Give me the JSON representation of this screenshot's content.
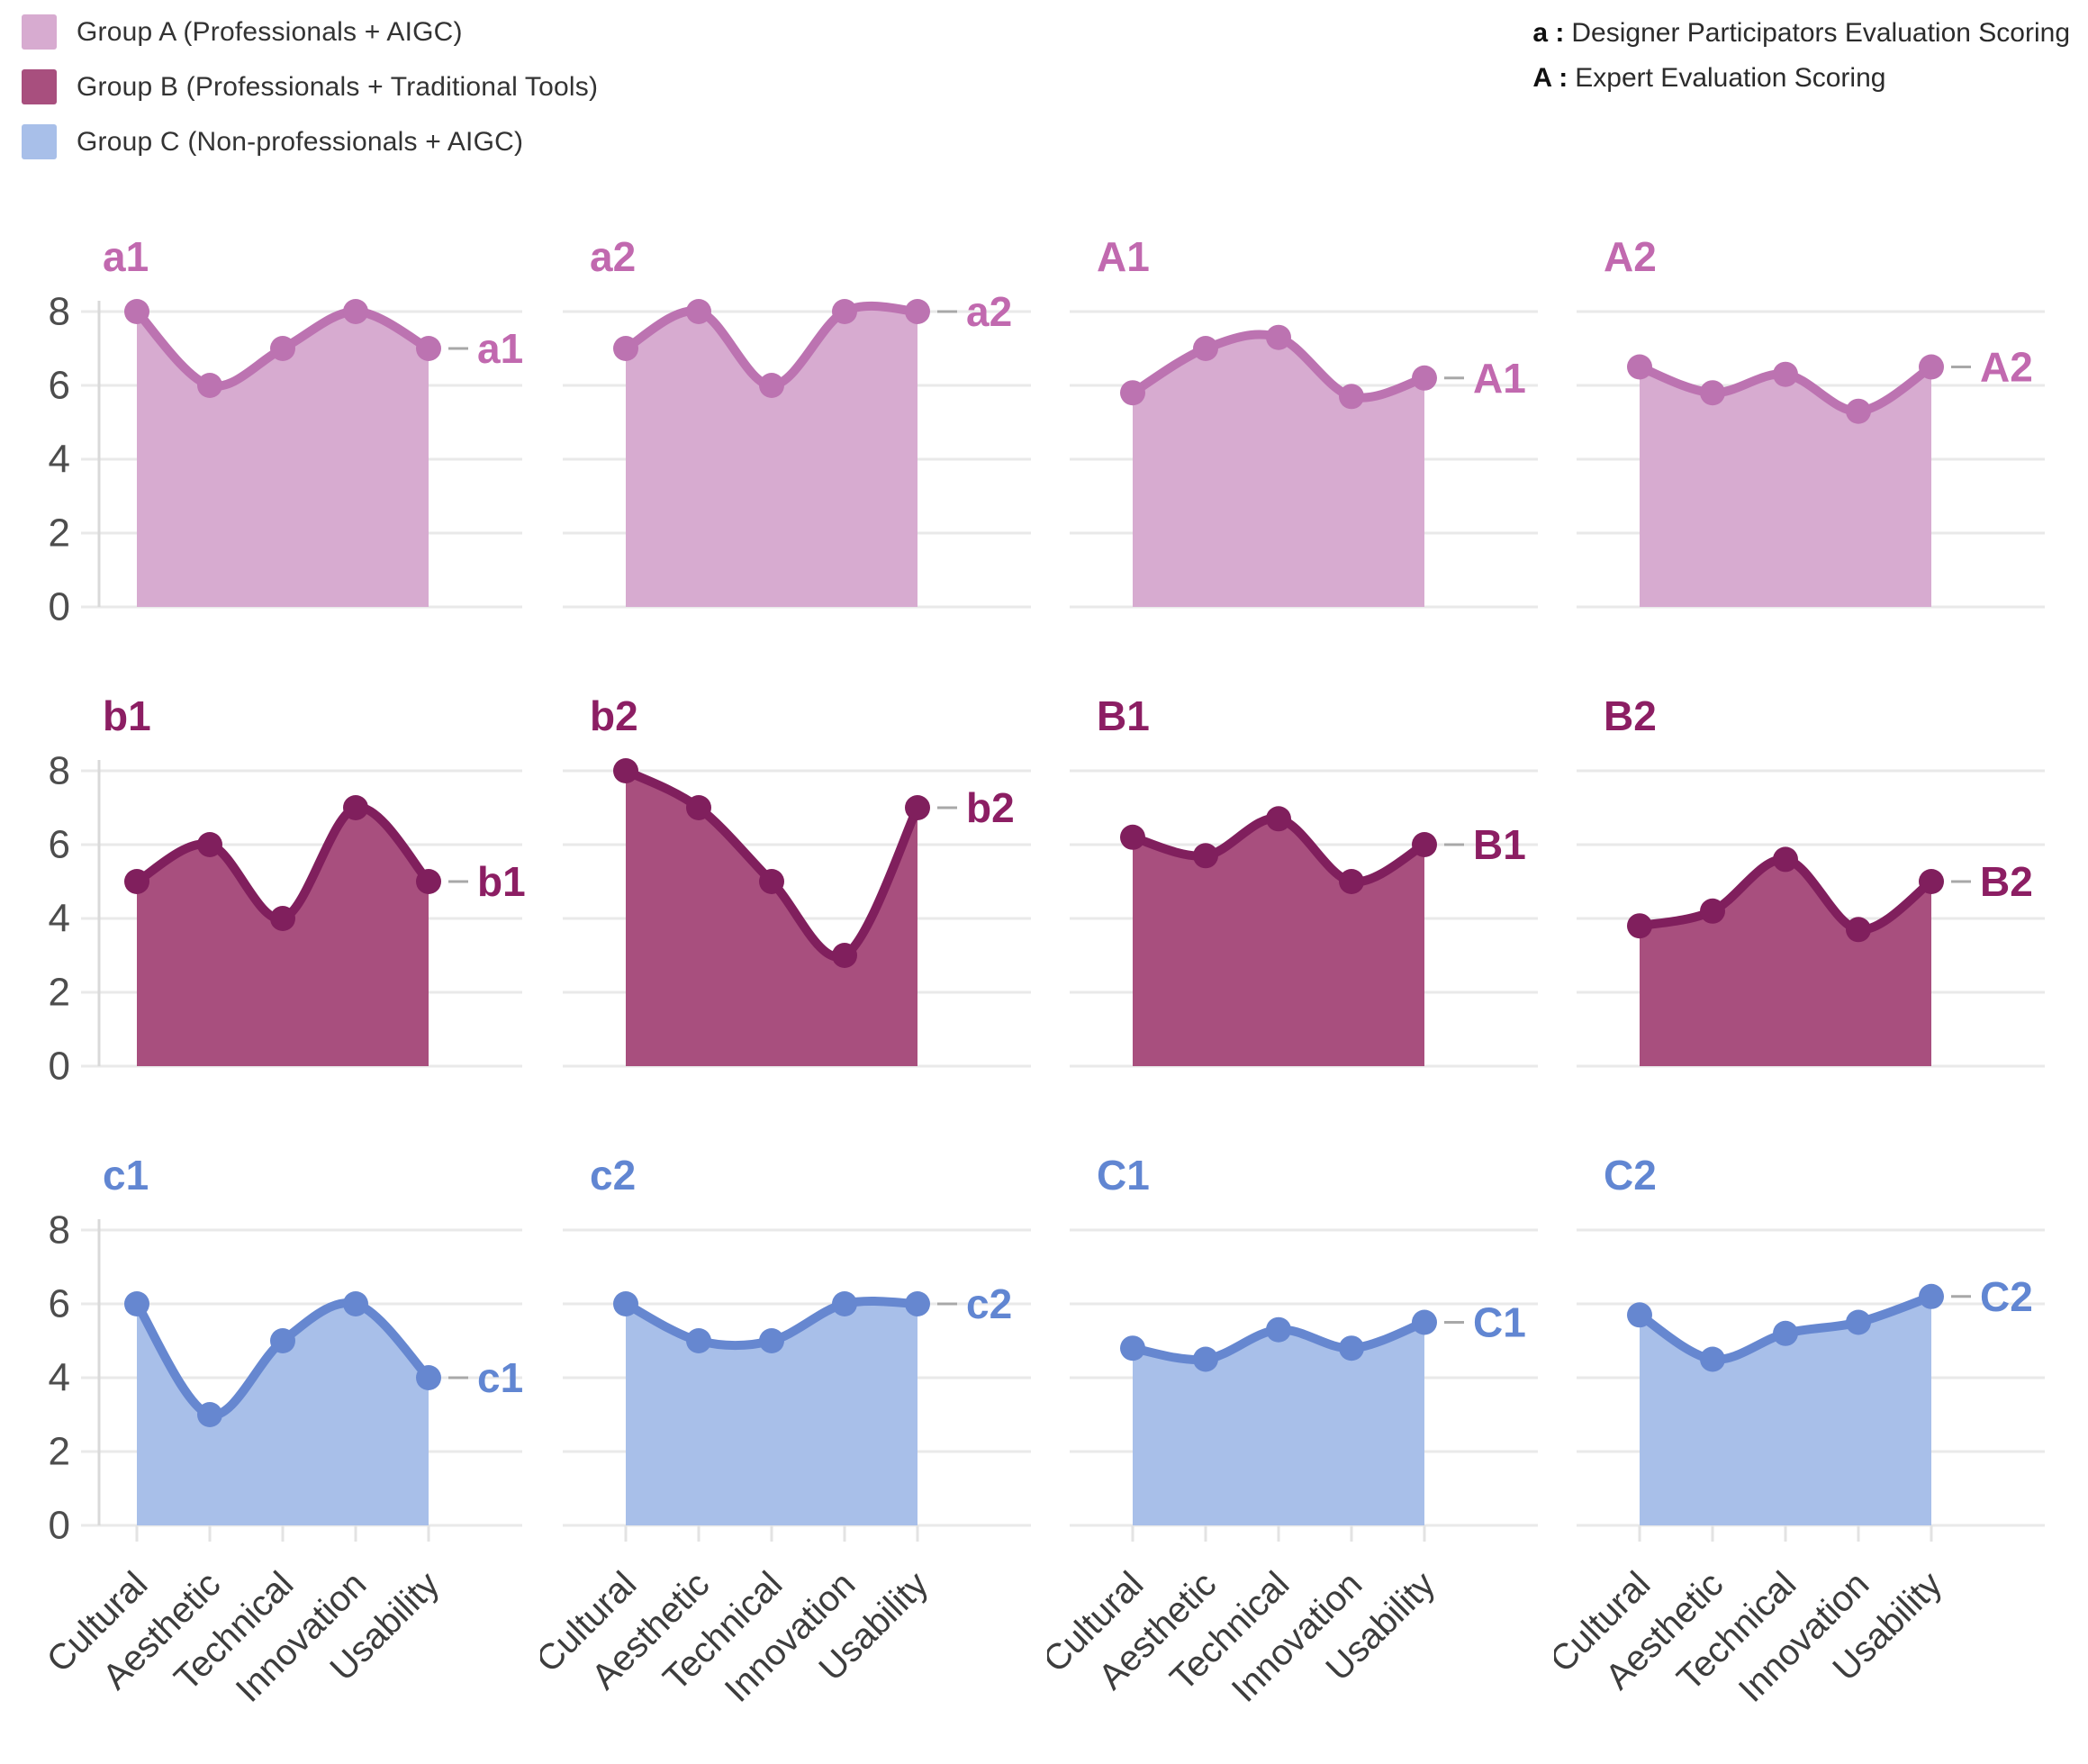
{
  "legend": {
    "items": [
      {
        "label": "Group A (Professionals + AIGC)",
        "color": "#d7abd0"
      },
      {
        "label": "Group B (Professionals + Traditional Tools)",
        "color": "#a84f7e"
      },
      {
        "label": "Group C (Non-professionals + AIGC)",
        "color": "#a8bfe9"
      }
    ]
  },
  "notes": [
    {
      "prefix": "a :",
      "text": "Designer Participators Evaluation Scoring"
    },
    {
      "prefix": "A :",
      "text": "Expert Evaluation Scoring"
    }
  ],
  "chart_data": {
    "type": "area",
    "categories": [
      "Cultural",
      "Aesthetic",
      "Technical",
      "Innovation",
      "Usability"
    ],
    "y_ticks": [
      0,
      2,
      4,
      6,
      8
    ],
    "ylim": [
      0,
      8.8
    ],
    "grid": true,
    "legend_position": "top-left",
    "rows": [
      {
        "group": "Group A (Professionals + AIGC)",
        "line_color": "#bc73b1",
        "fill_color": "#d7abd0",
        "title_color": "#c169af",
        "charts": [
          {
            "id": "a1",
            "values": [
              8,
              6,
              7,
              8,
              7
            ]
          },
          {
            "id": "a2",
            "values": [
              7,
              8,
              6,
              8,
              8
            ]
          },
          {
            "id": "A1",
            "values": [
              5.8,
              7,
              7.3,
              5.7,
              6.2
            ]
          },
          {
            "id": "A2",
            "values": [
              6.5,
              5.8,
              6.3,
              5.3,
              6.5
            ]
          }
        ]
      },
      {
        "group": "Group B (Professionals + Traditional Tools)",
        "line_color": "#801f5d",
        "fill_color": "#a84f7e",
        "title_color": "#8c1e63",
        "charts": [
          {
            "id": "b1",
            "values": [
              5,
              6,
              4,
              7,
              5
            ]
          },
          {
            "id": "b2",
            "values": [
              8,
              7,
              5,
              3,
              7
            ]
          },
          {
            "id": "B1",
            "values": [
              6.2,
              5.7,
              6.7,
              5,
              6
            ]
          },
          {
            "id": "B2",
            "values": [
              3.8,
              4.2,
              5.6,
              3.7,
              5
            ]
          }
        ]
      },
      {
        "group": "Group C (Non-professionals + AIGC)",
        "line_color": "#6687d0",
        "fill_color": "#a8bfe9",
        "title_color": "#6186d2",
        "charts": [
          {
            "id": "c1",
            "values": [
              6,
              3,
              5,
              6,
              4
            ]
          },
          {
            "id": "c2",
            "values": [
              6,
              5,
              5,
              6,
              6
            ]
          },
          {
            "id": "C1",
            "values": [
              4.8,
              4.5,
              5.3,
              4.8,
              5.5
            ]
          },
          {
            "id": "C2",
            "values": [
              5.7,
              4.5,
              5.2,
              5.5,
              6.2
            ]
          }
        ]
      }
    ]
  }
}
